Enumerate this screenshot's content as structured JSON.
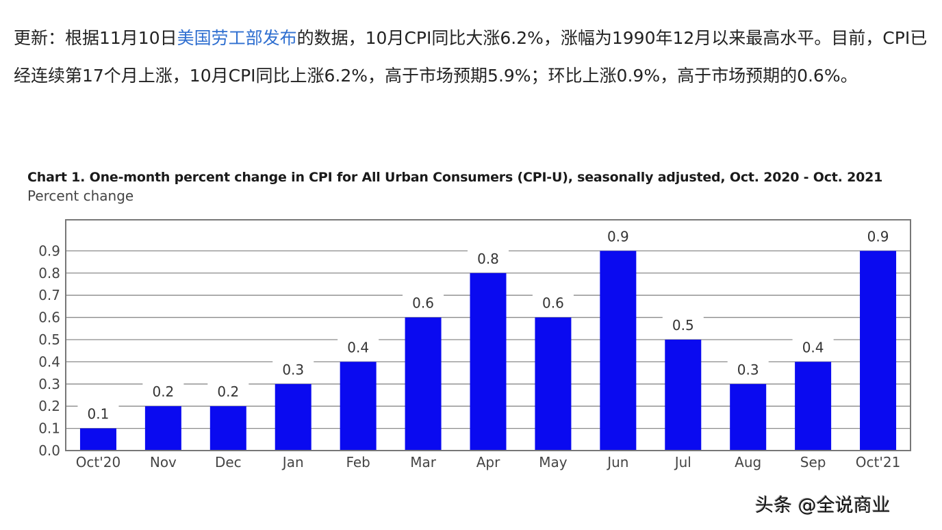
{
  "article": {
    "prefix": "更新：根据11月10日",
    "link_text": "美国劳工部发布",
    "suffix": "的数据，10月CPI同比大涨6.2%，涨幅为1990年12月以来最高水平。目前，CPI已经连续第17个月上涨，10月CPI同比上涨6.2%，高于市场预期5.9%；环比上涨0.9%，高于市场预期的0.6%。"
  },
  "chart_data": {
    "type": "bar",
    "title": "Chart 1. One-month percent change in CPI for All Urban Consumers (CPI-U), seasonally adjusted, Oct. 2020 - Oct. 2021",
    "ylabel": "Percent change",
    "xlabel": "",
    "categories": [
      "Oct'20",
      "Nov",
      "Dec",
      "Jan",
      "Feb",
      "Mar",
      "Apr",
      "May",
      "Jun",
      "Jul",
      "Aug",
      "Sep",
      "Oct'21"
    ],
    "values": [
      0.1,
      0.2,
      0.2,
      0.3,
      0.4,
      0.6,
      0.8,
      0.6,
      0.9,
      0.5,
      0.3,
      0.4,
      0.9
    ],
    "data_labels": [
      "0.1",
      "0.2",
      "0.2",
      "0.3",
      "0.4",
      "0.6",
      "0.8",
      "0.6",
      "0.9",
      "0.5",
      "0.3",
      "0.4",
      "0.9"
    ],
    "yticks": [
      "0.0",
      "0.1",
      "0.2",
      "0.3",
      "0.4",
      "0.5",
      "0.6",
      "0.7",
      "0.8",
      "0.9"
    ],
    "ylim": [
      0,
      1.04
    ],
    "grid": true,
    "bar_color": "#0a0af0"
  },
  "watermark": "头条 @全说商业"
}
